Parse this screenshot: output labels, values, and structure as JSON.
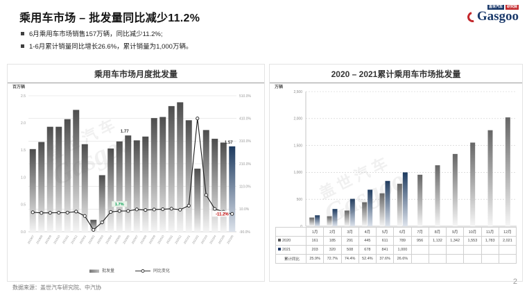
{
  "slide": {
    "title": "乘用车市场 – 批发量同比减少11.2%",
    "bullets": [
      "6月乘用车市场销售157万辆，同比减少11.2%;",
      "1-6月累计销量同比增长26.6%，累计销量为1,000万辆。"
    ],
    "footer_source": "数据来源：盖世汽车研究院、中汽协",
    "page_number": "2"
  },
  "logo": {
    "brand": "Gasgoo",
    "tag_primary": "盖世汽车",
    "tag_secondary": "研究院",
    "brand_color": "#1b3a6b",
    "accent_color": "#c3272b"
  },
  "watermark": {
    "cn": "盖世汽车",
    "en": "Gasgoo"
  },
  "colors": {
    "bar_gray_top": "#4d4d4d",
    "bar_gray_bottom": "#f4f4f4",
    "bar_navy_top": "#1d3a5f",
    "bar_navy_bottom": "#dde3ec",
    "line": "#1a1a1a",
    "negative_label": "#c00000",
    "positive_label": "#00a050",
    "grid": "#dddddd",
    "axis_text": "#999999"
  },
  "chart_data": [
    {
      "type": "bar",
      "title": "乘用车市场月度批发量",
      "unit_label": "百万辆",
      "categories": [
        "201907",
        "201908",
        "201909",
        "201910",
        "201911",
        "201912",
        "202001",
        "202002",
        "202003",
        "202004",
        "202005",
        "202006",
        "202007",
        "202008",
        "202009",
        "202010",
        "202011",
        "202012",
        "202101",
        "202102",
        "202103",
        "202104",
        "202105",
        "202106"
      ],
      "series": [
        {
          "name": "批发量",
          "type": "bar",
          "axis": "left",
          "values": [
            1.52,
            1.65,
            1.93,
            1.93,
            2.07,
            2.24,
            1.61,
            0.22,
            1.04,
            1.53,
            1.66,
            1.77,
            1.68,
            1.75,
            2.09,
            2.11,
            2.31,
            2.38,
            2.05,
            1.16,
            1.87,
            1.71,
            1.64,
            1.57
          ]
        },
        {
          "name": "同比变化",
          "type": "line",
          "axis": "right",
          "values": [
            -3.9,
            -6.9,
            -6.3,
            -5.8,
            -5.4,
            -0.9,
            -20.2,
            -81.7,
            -48.4,
            -2.6,
            1.7,
            1.8,
            8.5,
            6.0,
            8.1,
            9.3,
            11.6,
            7.2,
            25.0,
            410.0,
            72.0,
            10.9,
            -1.7,
            -11.2
          ]
        }
      ],
      "left_axis": {
        "min": 0,
        "max": 2.5,
        "ticks": [
          "2.5",
          "2.0",
          "1.5",
          "1.0",
          "0.5",
          "0.0"
        ]
      },
      "right_axis": {
        "min": -90,
        "max": 510,
        "ticks": [
          "510.0%",
          "410.0%",
          "310.0%",
          "210.0%",
          "110.0%",
          "10.0%",
          "-90.0%"
        ]
      },
      "annotations": [
        {
          "kind": "bar-label",
          "index": 11,
          "text": "1.77"
        },
        {
          "kind": "bar-label",
          "index": 23,
          "text": "1.57"
        },
        {
          "kind": "line-label-green",
          "index": 10,
          "text": "1.7%"
        },
        {
          "kind": "line-label-red",
          "index": 23,
          "text": "-11.2%"
        }
      ],
      "legend": [
        "批发量",
        "同比变化"
      ],
      "grid": true,
      "legend_position": "bottom"
    },
    {
      "type": "bar",
      "title": "2020 – 2021累计乘用车市场批发量",
      "unit_label": "万辆",
      "categories": [
        "1月",
        "2月",
        "3月",
        "4月",
        "5月",
        "6月",
        "7月",
        "8月",
        "9月",
        "10月",
        "11月",
        "12月"
      ],
      "series": [
        {
          "name": "2020",
          "values": [
            161,
            185,
            291,
            445,
            611,
            789,
            956,
            1132,
            1342,
            1553,
            1783,
            2021
          ]
        },
        {
          "name": "2021",
          "values": [
            203,
            320,
            508,
            678,
            841,
            1000
          ]
        }
      ],
      "y_axis": {
        "min": 0,
        "max": 2500,
        "ticks": [
          "2,500",
          "2,000",
          "1,500",
          "1,000",
          "500",
          "0"
        ]
      },
      "grid": true,
      "table": {
        "row_labels": [
          "2020",
          "2021",
          "累计同比"
        ],
        "row_swatches": [
          "#595959",
          "#1f3864",
          ""
        ],
        "rows": [
          [
            "161",
            "185",
            "291",
            "445",
            "611",
            "789",
            "956",
            "1,132",
            "1,342",
            "1,553",
            "1,783",
            "2,021"
          ],
          [
            "203",
            "320",
            "508",
            "678",
            "841",
            "1,000",
            "",
            "",
            "",
            "",
            "",
            ""
          ],
          [
            "25.9%",
            "72.7%",
            "74.4%",
            "52.4%",
            "37.6%",
            "26.6%",
            "",
            "",
            "",
            "",
            "",
            ""
          ]
        ]
      }
    }
  ]
}
